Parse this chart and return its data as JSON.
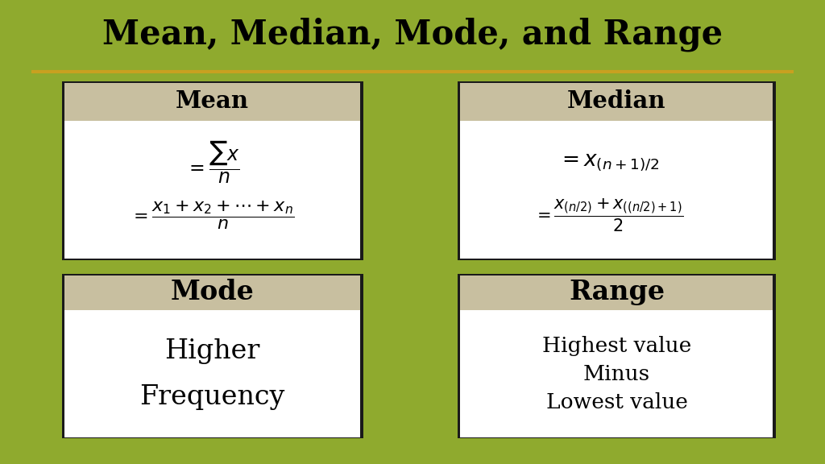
{
  "title": "Mean, Median, Mode, and Range",
  "bg_color": "#8faa2e",
  "inner_bg": "#ffffff",
  "header_bg": "#c8bfa0",
  "border_color": "#1a1a1a",
  "title_color": "#000000",
  "gold_line_color": "#c8a020",
  "mean_header": "Mean",
  "median_header": "Median",
  "mode_header": "Mode",
  "range_header": "Range",
  "mode_text_lines": [
    "Higher",
    "Frequency"
  ],
  "range_text_lines": [
    "Highest value",
    "Minus",
    "Lowest value"
  ]
}
